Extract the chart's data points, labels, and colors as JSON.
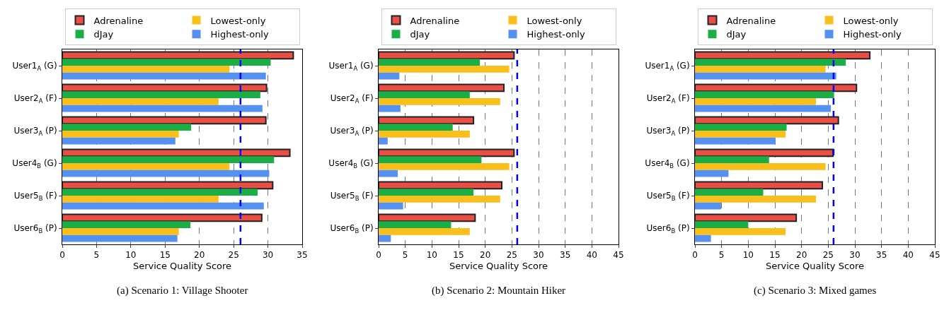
{
  "chart_data": [
    {
      "type": "bar",
      "orientation": "horizontal",
      "xlabel": "Service Quality Score",
      "categories": [
        "User1$_{A}$ (G)",
        "User2$_{A}$ (F)",
        "User3$_{A}$ (P)",
        "User4$_{B}$ (G)",
        "User5$_{B}$ (F)",
        "User6$_{B}$ (P)"
      ],
      "series": [
        {
          "name": "Adrenaline",
          "color": "#ea4f46",
          "values": [
            33.7,
            29.8,
            29.7,
            33.2,
            30.7,
            29.1
          ]
        },
        {
          "name": "dJay",
          "color": "#1aaf44",
          "values": [
            30.4,
            28.9,
            18.8,
            30.9,
            28.5,
            18.7
          ]
        },
        {
          "name": "Lowest-only",
          "color": "#fbbf1b",
          "values": [
            24.4,
            22.8,
            17.0,
            24.4,
            22.8,
            17.0
          ]
        },
        {
          "name": "Highest-only",
          "color": "#5591f0",
          "values": [
            29.7,
            29.2,
            16.5,
            30.2,
            29.4,
            16.8
          ]
        }
      ],
      "xlim": [
        0,
        35
      ],
      "xticks": [
        0,
        5,
        10,
        15,
        20,
        25,
        30,
        35
      ],
      "grid": "x",
      "legend": "top",
      "ref_lines": [
        {
          "axis": "x",
          "value": 26,
          "color": "#0000ff",
          "line_style": "dashed"
        }
      ],
      "annotations": [
        "(a) Scenario 1: Village Shooter"
      ]
    },
    {
      "type": "bar",
      "orientation": "horizontal",
      "xlabel": "Service Quality Score",
      "categories": [
        "User1$_{A}$ (G)",
        "User2$_{A}$ (F)",
        "User3$_{A}$ (P)",
        "User4$_{B}$ (G)",
        "User5$_{B}$ (F)",
        "User6$_{B}$ (P)"
      ],
      "series": [
        {
          "name": "Adrenaline",
          "color": "#ea4f46",
          "values": [
            25.4,
            23.5,
            17.8,
            25.4,
            23.1,
            18.1
          ]
        },
        {
          "name": "dJay",
          "color": "#1aaf44",
          "values": [
            19.0,
            17.1,
            13.9,
            19.3,
            17.8,
            13.6
          ]
        },
        {
          "name": "Lowest-only",
          "color": "#fbbf1b",
          "values": [
            24.5,
            22.8,
            17.1,
            24.5,
            22.8,
            17.1
          ]
        },
        {
          "name": "Highest-only",
          "color": "#5591f0",
          "values": [
            3.9,
            4.1,
            1.7,
            3.6,
            4.6,
            2.3
          ]
        }
      ],
      "xlim": [
        0,
        45
      ],
      "xticks": [
        0,
        5,
        10,
        15,
        20,
        25,
        30,
        35,
        40,
        45
      ],
      "grid": "x",
      "legend": "top",
      "ref_lines": [
        {
          "axis": "x",
          "value": 26,
          "color": "#0000ff",
          "line_style": "dashed"
        }
      ],
      "annotations": [
        "(b) Scenario 2: Mountain Hiker"
      ]
    },
    {
      "type": "bar",
      "orientation": "horizontal",
      "xlabel": "Service Quality Score",
      "categories": [
        "User1$_{A}$ (G)",
        "User2$_{A}$ (F)",
        "User3$_{A}$ (P)",
        "User4$_{B}$ (G)",
        "User5$_{B}$ (F)",
        "User6$_{B}$ (P)"
      ],
      "series": [
        {
          "name": "Adrenaline",
          "color": "#ea4f46",
          "values": [
            32.8,
            30.3,
            26.9,
            25.9,
            23.9,
            19.0
          ]
        },
        {
          "name": "dJay",
          "color": "#1aaf44",
          "values": [
            28.3,
            26.1,
            17.2,
            13.9,
            12.8,
            10.0
          ]
        },
        {
          "name": "Lowest-only",
          "color": "#fbbf1b",
          "values": [
            24.5,
            22.7,
            17.0,
            24.5,
            22.7,
            17.0
          ]
        },
        {
          "name": "Highest-only",
          "color": "#5591f0",
          "values": [
            26.5,
            25.5,
            15.1,
            6.3,
            4.9,
            3.0
          ]
        }
      ],
      "xlim": [
        0,
        45
      ],
      "xticks": [
        0,
        5,
        10,
        15,
        20,
        25,
        30,
        35,
        40,
        45
      ],
      "grid": "x",
      "legend": "top",
      "ref_lines": [
        {
          "axis": "x",
          "value": 26,
          "color": "#0000ff",
          "line_style": "dashed"
        }
      ],
      "annotations": [
        "(c) Scenario 3: Mixed games"
      ]
    }
  ]
}
